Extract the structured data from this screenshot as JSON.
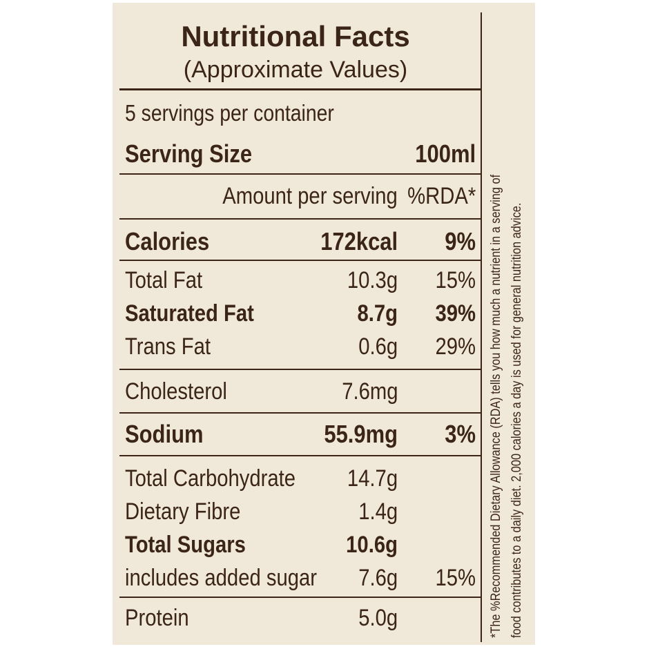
{
  "header": {
    "title": "Nutritional Facts",
    "subtitle": "(Approximate Values)"
  },
  "servings_per_container": "5 servings per container",
  "serving_size": {
    "label": "Serving Size",
    "value": "100ml"
  },
  "columns": {
    "amount": "Amount per serving",
    "rda": "%RDA*"
  },
  "rows": [
    {
      "name": "Calories",
      "amount": "172kcal",
      "rda": "9%"
    },
    {
      "name": "Total Fat",
      "amount": "10.3g",
      "rda": "15%"
    },
    {
      "name": "Saturated Fat",
      "amount": "8.7g",
      "rda": "39%"
    },
    {
      "name": "Trans Fat",
      "amount": "0.6g",
      "rda": "29%"
    },
    {
      "name": "Cholesterol",
      "amount": "7.6mg",
      "rda": ""
    },
    {
      "name": "Sodium",
      "amount": "55.9mg",
      "rda": "3%"
    },
    {
      "name": "Total Carbohydrate",
      "amount": "14.7g",
      "rda": ""
    },
    {
      "name": "Dietary Fibre",
      "amount": "1.4g",
      "rda": ""
    },
    {
      "name": "Total Sugars",
      "amount": "10.6g",
      "rda": ""
    },
    {
      "name": "includes added sugar",
      "amount": "7.6g",
      "rda": "15%"
    },
    {
      "name": "Protein",
      "amount": "5.0g",
      "rda": ""
    }
  ],
  "footnote": {
    "line1": "*The %Recommended Dietary Allowance (RDA) tells you how much a nutrient in a serving of",
    "line2": "food contributes to a daily diet. 2,000 calories a day is used for general nutrition advice."
  },
  "colors": {
    "background": "#f0e9da",
    "ink": "#3b2418"
  }
}
